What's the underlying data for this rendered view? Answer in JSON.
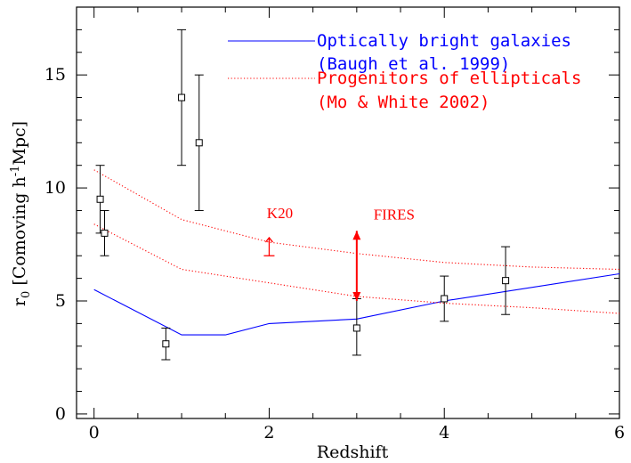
{
  "chart_data": {
    "type": "scatter",
    "title": "",
    "xlabel": "Redshift",
    "ylabel_main": "r",
    "ylabel_sub": "0",
    "ylabel_rest": " [Comoving h",
    "ylabel_sup": "-1",
    "ylabel_end": "Mpc]",
    "xlim": [
      -0.2,
      6.0
    ],
    "ylim": [
      -0.2,
      18.0
    ],
    "xticks": [
      0,
      2,
      4,
      6
    ],
    "yticks": [
      0,
      5,
      10,
      15
    ],
    "xtick_labels": [
      "0",
      "2",
      "4",
      "6"
    ],
    "ytick_labels": [
      "0",
      "5",
      "10",
      "15"
    ],
    "grid": false,
    "legend_position": "top-right",
    "colors": {
      "optical": "#0000ff",
      "progenitors": "#ff0000",
      "data": "#000000",
      "annotation": "#ff0000"
    },
    "series": [
      {
        "name": "Optically bright galaxies",
        "name_line2": "(Baugh et al. 1999)",
        "style": "solid",
        "x": [
          0.0,
          1.0,
          1.5,
          2.0,
          3.0,
          4.0,
          6.0
        ],
        "y": [
          5.5,
          3.5,
          3.5,
          4.0,
          4.2,
          5.0,
          6.2
        ]
      },
      {
        "name": "Progenitors of ellipticals",
        "name_line2": "(Mo & White 2002)",
        "style": "dotted",
        "x": [
          0.0,
          1.0,
          2.0,
          3.0,
          4.0,
          5.0,
          6.0
        ],
        "y": [
          10.8,
          8.6,
          7.6,
          7.1,
          6.7,
          6.5,
          6.4
        ]
      },
      {
        "name": "",
        "style": "dotted",
        "x": [
          0.0,
          1.0,
          2.0,
          3.0,
          4.0,
          5.0,
          6.0
        ],
        "y": [
          8.4,
          6.4,
          5.8,
          5.2,
          4.9,
          4.7,
          4.45
        ]
      }
    ],
    "points": [
      {
        "x": 0.07,
        "y": 9.5,
        "ylo": 8.0,
        "yhi": 11.0
      },
      {
        "x": 0.12,
        "y": 8.0,
        "ylo": 7.0,
        "yhi": 9.0
      },
      {
        "x": 0.82,
        "y": 3.1,
        "ylo": 2.4,
        "yhi": 3.8
      },
      {
        "x": 1.0,
        "y": 14.0,
        "ylo": 11.0,
        "yhi": 17.0
      },
      {
        "x": 1.2,
        "y": 12.0,
        "ylo": 9.0,
        "yhi": 15.0
      },
      {
        "x": 3.0,
        "y": 3.8,
        "ylo": 2.6,
        "yhi": 5.1
      },
      {
        "x": 4.0,
        "y": 5.1,
        "ylo": 4.1,
        "yhi": 6.1
      },
      {
        "x": 4.7,
        "y": 5.9,
        "ylo": 4.4,
        "yhi": 7.4
      }
    ],
    "annotations": [
      {
        "text": "K20",
        "x": 2.0,
        "y_low": 7.0,
        "y_high": 7.8,
        "kind": "lower-limit"
      },
      {
        "text": "FIRES",
        "x": 3.0,
        "y_low": 5.0,
        "y_high": 8.1,
        "kind": "range"
      }
    ]
  }
}
